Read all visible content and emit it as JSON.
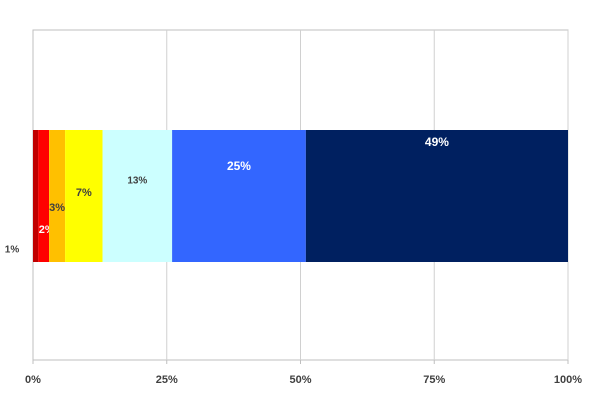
{
  "chart_data": {
    "type": "stacked-bar-horizontal",
    "categories": [
      null
    ],
    "series": [
      {
        "name": "1%",
        "color": "#c00000",
        "values": [
          1
        ],
        "value_labels": [
          "1%"
        ]
      },
      {
        "name": "2%",
        "color": "#ff0000",
        "values": [
          2
        ],
        "value_labels": [
          "2%"
        ]
      },
      {
        "name": "3%",
        "color": "#ffc000",
        "values": [
          3
        ],
        "value_labels": [
          "3%"
        ]
      },
      {
        "name": "7%",
        "color": "#ffff00",
        "values": [
          7
        ],
        "value_labels": [
          "7%"
        ]
      },
      {
        "name": "13%",
        "color": "#ccffff",
        "values": [
          13
        ],
        "value_labels": [
          "13%"
        ]
      },
      {
        "name": "25%",
        "color": "#3366ff",
        "values": [
          25
        ],
        "value_labels": [
          "25%"
        ]
      },
      {
        "name": "49%",
        "color": "#002060",
        "values": [
          49
        ],
        "value_labels": [
          "49%"
        ]
      }
    ],
    "xlim": [
      0,
      100
    ],
    "xticks": [
      {
        "value": 0,
        "label": "0%"
      },
      {
        "value": 25,
        "label": "25%"
      },
      {
        "value": 50,
        "label": "50%"
      },
      {
        "value": 75,
        "label": "75%"
      },
      {
        "value": 100,
        "label": "100%"
      }
    ],
    "grid": true
  }
}
